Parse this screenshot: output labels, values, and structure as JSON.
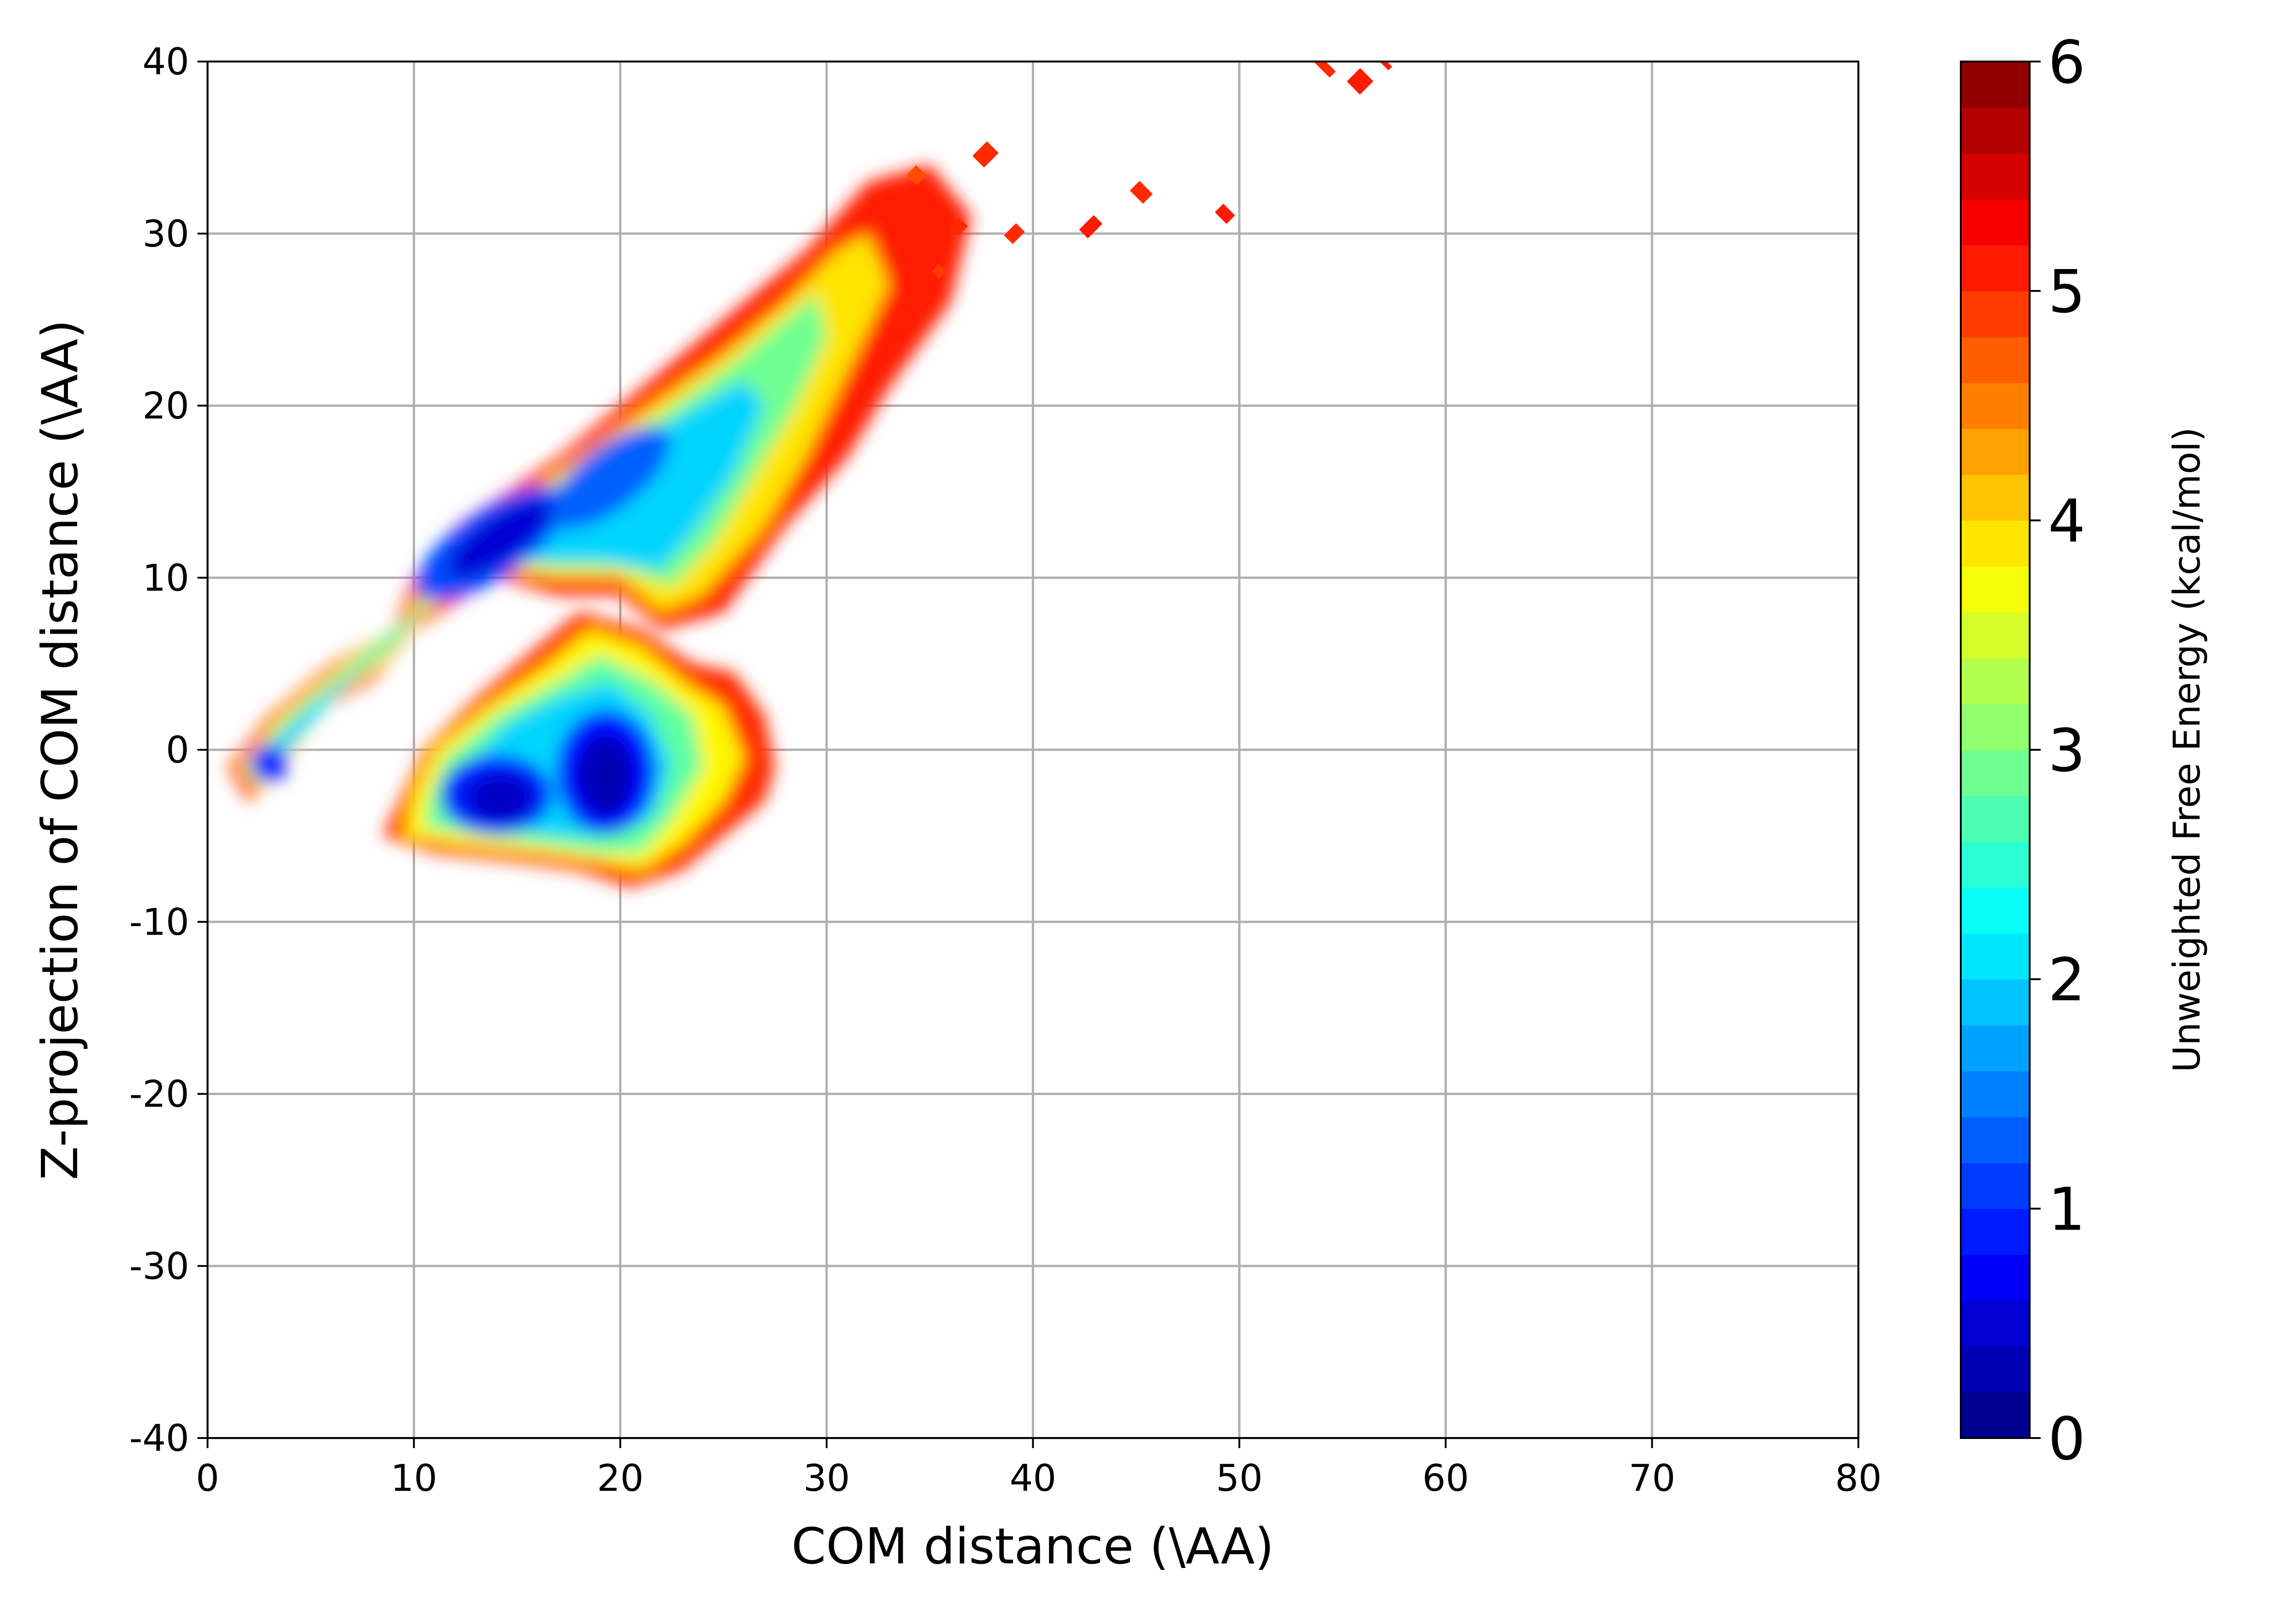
{
  "chart_data": {
    "type": "heatmap",
    "subtype": "filled-contour",
    "title": "",
    "xlabel": "COM distance (\\AA)",
    "ylabel": "Z-projection of COM distance (\\AA)",
    "xlim": [
      0,
      80
    ],
    "ylim": [
      -40,
      40
    ],
    "xticks": [
      "0",
      "10",
      "20",
      "30",
      "40",
      "50",
      "60",
      "70",
      "80"
    ],
    "yticks": [
      "40",
      "30",
      "20",
      "10",
      "0",
      "-10",
      "-20",
      "-30",
      "-40"
    ],
    "grid": true,
    "colorbar": {
      "label": "Unweighted Free Energy (kcal/mol)",
      "range": [
        0,
        6
      ],
      "levels": 30,
      "ticks": [
        "0",
        "1",
        "2",
        "3",
        "4",
        "5",
        "6"
      ],
      "colormap": "jet"
    },
    "regions": [
      {
        "name": "upper-band",
        "x": [
          1,
          37
        ],
        "y": [
          -2,
          34
        ],
        "value_range": [
          0.5,
          5.5
        ]
      },
      {
        "name": "lower-lobe",
        "x": [
          8,
          28
        ],
        "y": [
          -8,
          9
        ],
        "value_range": [
          0.2,
          5.5
        ]
      },
      {
        "name": "upper-band-minimum",
        "x": [
          11,
          20
        ],
        "y": [
          9,
          16
        ],
        "value": 0.4
      },
      {
        "name": "lower-lobe-minimum",
        "x": [
          12,
          22
        ],
        "y": [
          -5,
          2
        ],
        "value": 0.3
      },
      {
        "name": "sparse-points",
        "x": [
          38,
          57
        ],
        "y": [
          30,
          40
        ],
        "value": 5.0
      }
    ]
  }
}
